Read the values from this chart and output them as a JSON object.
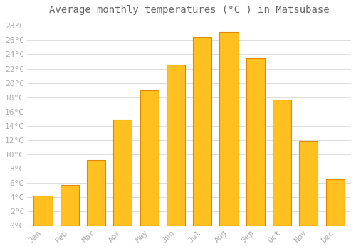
{
  "title": "Average monthly temperatures (°C ) in Matsubase",
  "months": [
    "Jan",
    "Feb",
    "Mar",
    "Apr",
    "May",
    "Jun",
    "Jul",
    "Aug",
    "Sep",
    "Oct",
    "Nov",
    "Dec"
  ],
  "temperatures": [
    4.2,
    5.7,
    9.2,
    14.9,
    19.0,
    22.6,
    26.4,
    27.1,
    23.5,
    17.7,
    11.9,
    6.5
  ],
  "bar_color_main": "#FFC020",
  "bar_color_edge": "#E08800",
  "background_color": "#ffffff",
  "plot_bg_color": "#ffffff",
  "grid_color": "#dddddd",
  "ylim": [
    0,
    29
  ],
  "title_fontsize": 10,
  "tick_fontsize": 8,
  "label_color": "#aaaaaa",
  "font_family": "monospace",
  "title_color": "#666666"
}
